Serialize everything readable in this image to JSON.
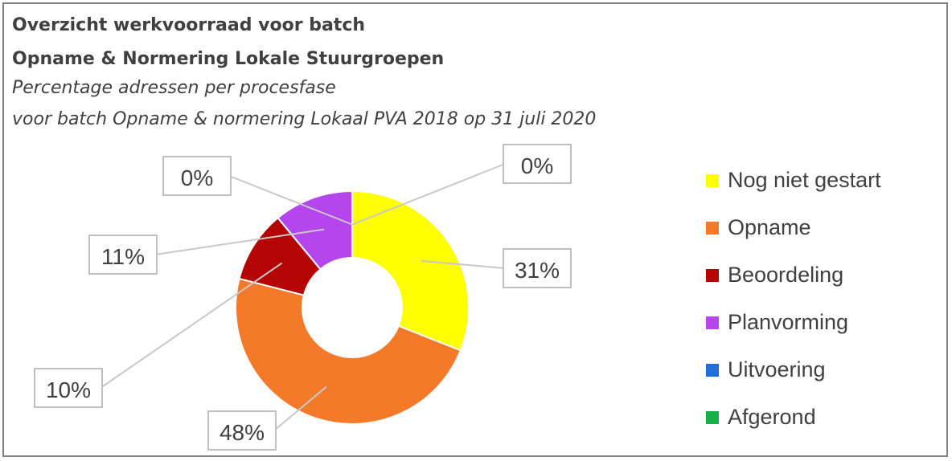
{
  "chart_data": {
    "type": "pie",
    "style": "donut",
    "title": "Overzicht werkvoorraad voor batch",
    "title_line2": "Opname & Normering Lokale Stuurgroepen",
    "subtitle": "Percentage adressen per procesfase",
    "subtitle_line2": "voor batch Opname & normering Lokaal PVA 2018 op 31 juli 2020",
    "legend_position": "right",
    "slices": [
      {
        "name": "Nog niet gestart",
        "value": 31,
        "label": "31%",
        "color": "#ffff00"
      },
      {
        "name": "Opname",
        "value": 48,
        "label": "48%",
        "color": "#f47a2a"
      },
      {
        "name": "Beoordeling",
        "value": 10,
        "label": "10%",
        "color": "#b40404"
      },
      {
        "name": "Planvorming",
        "value": 11,
        "label": "11%",
        "color": "#b545ec"
      },
      {
        "name": "Uitvoering",
        "value": 0,
        "label": "0%",
        "color": "#1f6fd8"
      },
      {
        "name": "Afgerond",
        "value": 0,
        "label": "0%",
        "color": "#16b04a"
      }
    ]
  }
}
